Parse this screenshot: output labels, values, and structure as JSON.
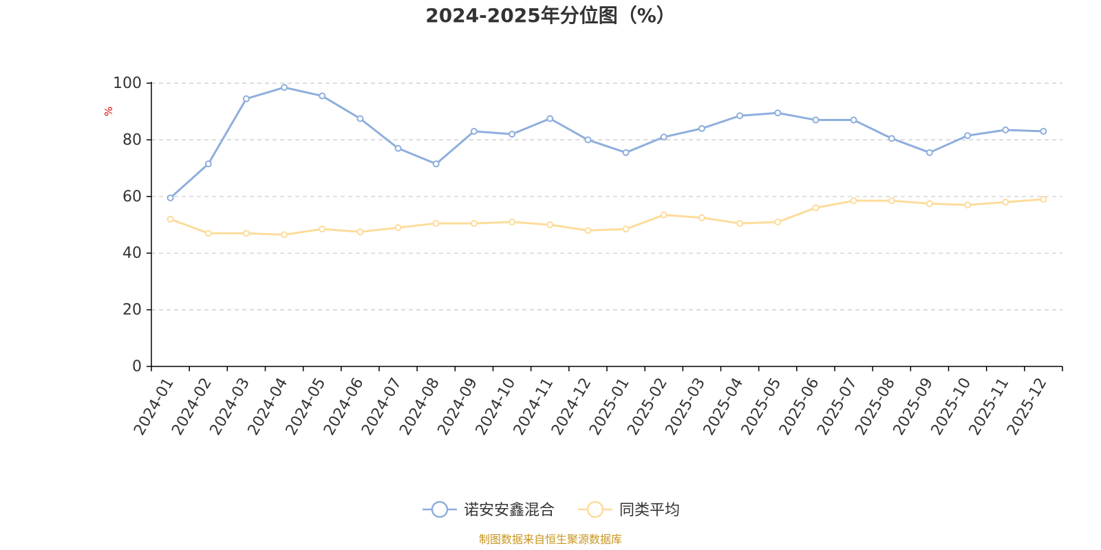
{
  "title": "2024-2025年分位图（%）",
  "source": "制图数据来自恒生聚源数据库",
  "colors": {
    "fund": "#8eaedd",
    "avg": "#fddc9a",
    "unit": "#e60000",
    "source": "#c8961e"
  },
  "chart_data": {
    "type": "line",
    "title": "2024-2025年分位图（%）",
    "ylabel": "%",
    "xlabel": "",
    "ylim": [
      0,
      100
    ],
    "yticks": [
      0,
      20,
      40,
      60,
      80,
      100
    ],
    "grid": true,
    "legend_position": "bottom-center",
    "categories": [
      "2024-01",
      "2024-02",
      "2024-03",
      "2024-04",
      "2024-05",
      "2024-06",
      "2024-07",
      "2024-08",
      "2024-09",
      "2024-10",
      "2024-11",
      "2024-12",
      "2025-01",
      "2025-02",
      "2025-03",
      "2025-04",
      "2025-05",
      "2025-06",
      "2025-07",
      "2025-08",
      "2025-09",
      "2025-10",
      "2025-11",
      "2025-12"
    ],
    "series": [
      {
        "name": "诺安安鑫混合",
        "color": "#8eaedd",
        "values": [
          59.5,
          71.5,
          94.5,
          98.5,
          95.5,
          87.5,
          77,
          71.5,
          83,
          82,
          87.5,
          80,
          75.5,
          81,
          84,
          88.5,
          89.5,
          87,
          87,
          80.5,
          75.5,
          81.5,
          83.5,
          83
        ]
      },
      {
        "name": "同类平均",
        "color": "#fddc9a",
        "values": [
          52,
          47,
          47,
          46.5,
          48.5,
          47.5,
          49,
          50.5,
          50.5,
          51,
          50,
          48,
          48.5,
          53.5,
          52.5,
          50.5,
          51,
          56,
          58.5,
          58.5,
          57.5,
          57,
          58,
          59
        ]
      }
    ]
  }
}
